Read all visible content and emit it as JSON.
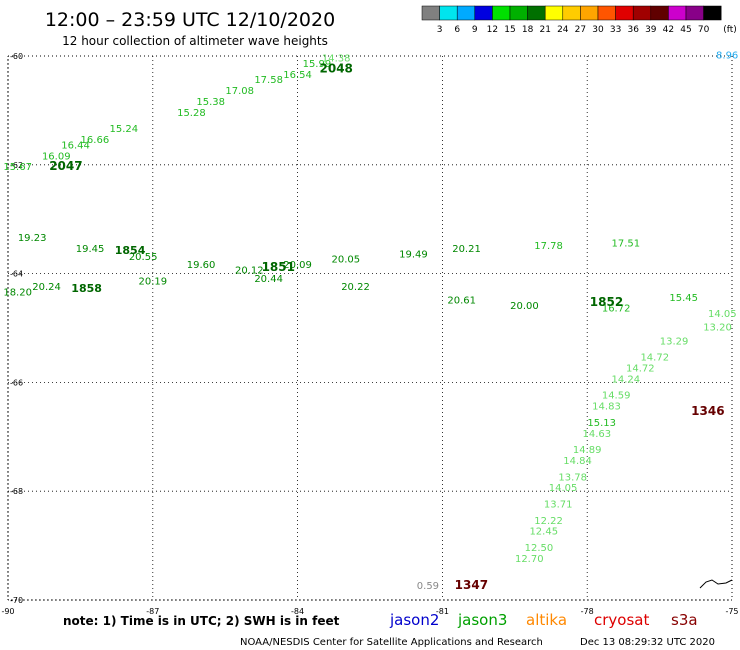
{
  "header": {
    "title": "12:00 – 23:59 UTC 12/10/2020",
    "subtitle": "12 hour collection of altimeter wave heights"
  },
  "colorbar": {
    "unit": "(ft)",
    "labels": [
      "3",
      "6",
      "9",
      "12",
      "15",
      "18",
      "21",
      "24",
      "27",
      "30",
      "33",
      "36",
      "39",
      "42",
      "45",
      "70"
    ],
    "colors": [
      "#808080",
      "#00e5ee",
      "#00aaff",
      "#0000e0",
      "#00e000",
      "#00b000",
      "#007000",
      "#ffff00",
      "#ffcc00",
      "#ffa500",
      "#ff5500",
      "#e00000",
      "#a00000",
      "#600000",
      "#cc00cc",
      "#880088",
      "#000000"
    ]
  },
  "footer": {
    "note": "note: 1) Time is in UTC; 2) SWH is in feet",
    "satellites": [
      {
        "name": "jason2",
        "color": "#0000cc"
      },
      {
        "name": "jason3",
        "color": "#00a000"
      },
      {
        "name": "altika",
        "color": "#ff8800"
      },
      {
        "name": "cryosat",
        "color": "#dd0000"
      },
      {
        "name": "s3a",
        "color": "#880000"
      }
    ],
    "credit": "NOAA/NESDIS Center for Satellite Applications and Research",
    "timestamp": "Dec 13 08:29:32 UTC 2020"
  },
  "chart_data": {
    "type": "scatter",
    "title": "12:00 – 23:59 UTC 12/10/2020",
    "subtitle": "12 hour collection of altimeter wave heights",
    "xlim": [
      -90,
      -75
    ],
    "ylim": [
      -70,
      -60
    ],
    "xticks": [
      "-90",
      "-87",
      "-84",
      "-81",
      "-78",
      "-75"
    ],
    "yticks": [
      "-60",
      "-62",
      "-64",
      "-66",
      "-68",
      "-70"
    ],
    "grid": true,
    "legend": "bottom",
    "tracks": [
      {
        "name": "",
        "time_label": "2048",
        "label_pos": [
          -83.2,
          -60.3
        ],
        "points": [
          {
            "lon": -89.8,
            "lat": -62.1,
            "swh": "15.67"
          },
          {
            "lon": -89.0,
            "lat": -61.9,
            "swh": "16.09"
          },
          {
            "lon": -88.6,
            "lat": -61.7,
            "swh": "16.44"
          },
          {
            "lon": -88.2,
            "lat": -61.6,
            "swh": "16.66"
          },
          {
            "lon": -87.6,
            "lat": -61.4,
            "swh": "15.24"
          },
          {
            "lon": -86.2,
            "lat": -61.1,
            "swh": "15.28"
          },
          {
            "lon": -85.8,
            "lat": -60.9,
            "swh": "15.38"
          },
          {
            "lon": -85.2,
            "lat": -60.7,
            "swh": "17.08"
          },
          {
            "lon": -84.6,
            "lat": -60.5,
            "swh": "17.58"
          },
          {
            "lon": -84.0,
            "lat": -60.4,
            "swh": "16.54"
          },
          {
            "lon": -83.6,
            "lat": -60.2,
            "swh": "15.99"
          },
          {
            "lon": -83.2,
            "lat": -60.1,
            "swh": "14.38"
          }
        ],
        "time_label2": "2047",
        "label_pos2": [
          -88.8,
          -62.1
        ]
      },
      {
        "name": "",
        "time_label": "1346",
        "label_pos": [
          -75.5,
          -66.6
        ],
        "points": [
          {
            "lon": -79.2,
            "lat": -69.3,
            "swh": "12.70"
          },
          {
            "lon": -79.0,
            "lat": -69.1,
            "swh": "12.50"
          },
          {
            "lon": -78.9,
            "lat": -68.8,
            "swh": "12.45"
          },
          {
            "lon": -78.8,
            "lat": -68.6,
            "swh": "12.22"
          },
          {
            "lon": -78.6,
            "lat": -68.3,
            "swh": "13.71"
          },
          {
            "lon": -78.5,
            "lat": -68.0,
            "swh": "14.05"
          },
          {
            "lon": -78.3,
            "lat": -67.8,
            "swh": "13.78"
          },
          {
            "lon": -78.2,
            "lat": -67.5,
            "swh": "14.84"
          },
          {
            "lon": -78.0,
            "lat": -67.3,
            "swh": "14.89"
          },
          {
            "lon": -77.8,
            "lat": -67.0,
            "swh": "14.63"
          },
          {
            "lon": -77.7,
            "lat": -66.8,
            "swh": "15.13"
          },
          {
            "lon": -77.6,
            "lat": -66.5,
            "swh": "14.83"
          },
          {
            "lon": -77.4,
            "lat": -66.3,
            "swh": "14.59"
          },
          {
            "lon": -77.2,
            "lat": -66.0,
            "swh": "14.24"
          },
          {
            "lon": -76.9,
            "lat": -65.8,
            "swh": "14.72"
          },
          {
            "lon": -76.6,
            "lat": -65.6,
            "swh": "14.72"
          },
          {
            "lon": -76.2,
            "lat": -65.3,
            "swh": "13.29"
          }
        ]
      },
      {
        "name": "",
        "time_label": "1347",
        "label_pos": [
          -80.4,
          -69.8
        ],
        "points": [
          {
            "lon": -81.3,
            "lat": -69.8,
            "swh": "0.59"
          }
        ]
      },
      {
        "name": "",
        "time_label": "1858",
        "points": [
          {
            "lon": -89.8,
            "lat": -64.4,
            "swh": "18.20"
          },
          {
            "lon": -89.2,
            "lat": -64.3,
            "swh": "20.24"
          },
          {
            "lon": -87.0,
            "lat": -64.2,
            "swh": "20.19"
          },
          {
            "lon": -85.0,
            "lat": -64.0,
            "swh": "20.12"
          },
          {
            "lon": -84.0,
            "lat": -63.9,
            "swh": "20.09"
          },
          {
            "lon": -83.0,
            "lat": -63.8,
            "swh": "20.05"
          },
          {
            "lon": -81.6,
            "lat": -63.7,
            "swh": "19.49"
          },
          {
            "lon": -80.5,
            "lat": -63.6,
            "swh": "20.21"
          },
          {
            "lon": -78.8,
            "lat": -63.55,
            "swh": "17.78"
          },
          {
            "lon": -77.2,
            "lat": -63.5,
            "swh": "17.51"
          }
        ]
      },
      {
        "name": "",
        "time_label": "1854",
        "points": [
          {
            "lon": -89.5,
            "lat": -63.4,
            "swh": "19.23"
          },
          {
            "lon": -88.3,
            "lat": -63.6,
            "swh": "19.45"
          },
          {
            "lon": -87.2,
            "lat": -63.75,
            "swh": "20.55"
          },
          {
            "lon": -86.0,
            "lat": -63.9,
            "swh": "19.60"
          },
          {
            "lon": -84.6,
            "lat": -64.15,
            "swh": "20.44"
          },
          {
            "lon": -82.8,
            "lat": -64.3,
            "swh": "20.22"
          },
          {
            "lon": -80.6,
            "lat": -64.55,
            "swh": "20.61"
          },
          {
            "lon": -79.3,
            "lat": -64.65,
            "swh": "20.00"
          },
          {
            "lon": -77.4,
            "lat": -64.7,
            "swh": "16.72"
          },
          {
            "lon": -76.0,
            "lat": -64.5,
            "swh": "15.45"
          },
          {
            "lon": -75.2,
            "lat": -64.8,
            "swh": "14.05"
          },
          {
            "lon": -75.3,
            "lat": -65.05,
            "swh": "13.20"
          }
        ]
      },
      {
        "name": "",
        "time_label": "1852",
        "label_pos": [
          -77.6,
          -64.6
        ],
        "points": []
      },
      {
        "name": "",
        "time_label": "1851",
        "label_pos": [
          -84.4,
          -63.95
        ],
        "points": []
      },
      {
        "name": "",
        "time_label": "",
        "points": [
          {
            "lon": -75.1,
            "lat": -60.05,
            "swh": "8.96"
          }
        ]
      }
    ]
  }
}
